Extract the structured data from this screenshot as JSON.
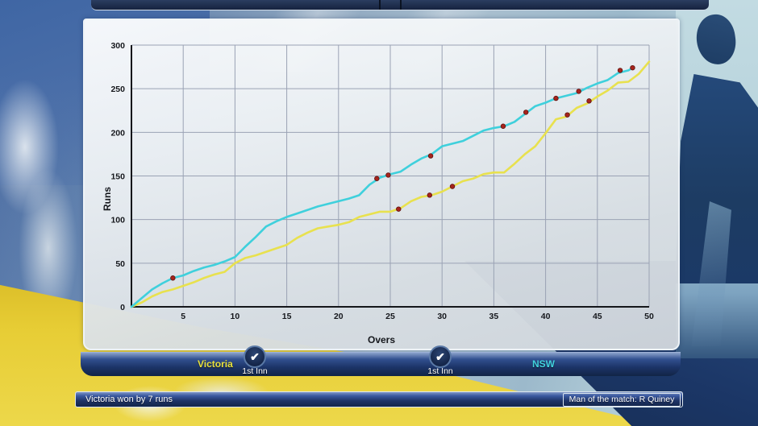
{
  "colors": {
    "nsw_accent": "#41d2de",
    "victoria_accent": "#e8e13c",
    "wicket_marker": "#a6241d",
    "bar_navy": "#1c3468",
    "panel_border": "#eef3f7"
  },
  "chart_data": {
    "type": "line",
    "title": "",
    "xlabel": "Overs",
    "ylabel": "Runs",
    "xlim": [
      0,
      50
    ],
    "ylim": [
      0,
      300
    ],
    "x_ticks": [
      5,
      10,
      15,
      20,
      25,
      30,
      35,
      40,
      45,
      50
    ],
    "y_ticks": [
      0,
      50,
      100,
      150,
      200,
      250,
      300
    ],
    "grid": true,
    "grid_color": "#9aa2b4",
    "axis_color": "#14161a",
    "legend_position": "none",
    "wicket_marker_color": "#a6241d",
    "series": [
      {
        "name": "Victoria",
        "color": "#e8e14e",
        "x": [
          0,
          1,
          2,
          3,
          4,
          5,
          6,
          7,
          8,
          9,
          10,
          11,
          12,
          13,
          14,
          15,
          16,
          17,
          18,
          19,
          20,
          21,
          22,
          23,
          24,
          25,
          26,
          27,
          28,
          29,
          30,
          31,
          32,
          33,
          34,
          35,
          36,
          37,
          38,
          39,
          40,
          41,
          42,
          43,
          44,
          45,
          46,
          47,
          48,
          49,
          50
        ],
        "runs": [
          0,
          5,
          12,
          17,
          20,
          24,
          28,
          33,
          37,
          40,
          50,
          56,
          59,
          63,
          67,
          71,
          79,
          85,
          90,
          92,
          94,
          97,
          103,
          106,
          109,
          109,
          113,
          121,
          126,
          128,
          132,
          138,
          144,
          147,
          152,
          154,
          154,
          164,
          175,
          184,
          199,
          215,
          218,
          228,
          233,
          241,
          248,
          257,
          258,
          267,
          281
        ],
        "wickets": [
          [
            25.8,
            112
          ],
          [
            28.8,
            128
          ],
          [
            31,
            138
          ],
          [
            42.1,
            220
          ],
          [
            44.2,
            236
          ]
        ]
      },
      {
        "name": "NSW",
        "color": "#3fd0dc",
        "x": [
          0,
          1,
          2,
          3,
          4,
          5,
          6,
          7,
          8,
          9,
          10,
          11,
          12,
          13,
          14,
          15,
          16,
          17,
          18,
          19,
          20,
          21,
          22,
          23,
          24,
          25,
          26,
          27,
          28,
          29,
          30,
          31,
          32,
          33,
          34,
          35,
          36,
          37,
          38,
          39,
          40,
          41,
          42,
          43,
          44,
          45,
          46,
          47,
          48,
          48.4
        ],
        "runs": [
          0,
          10,
          20,
          27,
          33,
          36,
          41,
          45,
          48,
          52,
          57,
          69,
          80,
          92,
          98,
          103,
          107,
          111,
          115,
          118,
          121,
          124,
          128,
          140,
          148,
          152,
          155,
          163,
          170,
          175,
          184,
          187,
          190,
          196,
          202,
          205,
          207,
          212,
          221,
          230,
          234,
          239,
          242,
          245,
          251,
          256,
          260,
          268,
          271,
          274
        ],
        "wickets": [
          [
            4,
            33
          ],
          [
            23.7,
            147
          ],
          [
            24.8,
            151
          ],
          [
            28.9,
            173
          ],
          [
            35.9,
            207
          ],
          [
            38.1,
            223
          ],
          [
            41,
            239
          ],
          [
            43.2,
            247
          ],
          [
            47.2,
            271
          ],
          [
            48.4,
            274
          ]
        ]
      }
    ]
  },
  "innings_bar": {
    "left_team": {
      "label": "Victoria",
      "color": "#e8e13c"
    },
    "left_button": {
      "label": "1st Inn",
      "check": "✔",
      "selected": true
    },
    "right_button": {
      "label": "1st Inn",
      "check": "✔",
      "selected": true
    },
    "right_team": {
      "label": "NSW",
      "color": "#41d2de"
    }
  },
  "status_bar": {
    "result": "Victoria won by 7 runs",
    "man_of_the_match": "Man of the match: R Quiney"
  }
}
